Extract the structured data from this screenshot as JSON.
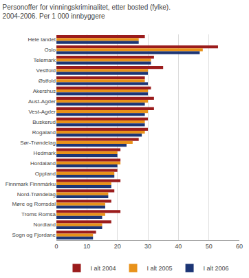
{
  "chart_data": {
    "type": "bar",
    "orientation": "horizontal",
    "title": "Personoffer for vinningskriminalitet, etter bosted (fylke).\n2004-2006. Per 1 000 innbyggere",
    "categories": [
      "Hele landet",
      "Oslo",
      "Telemark",
      "Vestfold",
      "Østfold",
      "Akershus",
      "Aust-Agder",
      "Vest-Agder",
      "Buskerud",
      "Rogaland",
      "Sør-Trøndelag",
      "Hedmark",
      "Hordaland",
      "Oppland",
      "Finnmark Finnmárku",
      "Nord-Trøndelag",
      "Møre og Romsdal",
      "Troms Romsa",
      "Nordland",
      "Sogn og Fjordane"
    ],
    "series": [
      {
        "name": "I alt 2004",
        "color": "#9B1C1C",
        "values": [
          29,
          53,
          32,
          35,
          29,
          31,
          32,
          32,
          30,
          30,
          27,
          21,
          21,
          20,
          21,
          19,
          18,
          21,
          18,
          13
        ]
      },
      {
        "name": "I alt 2005",
        "color": "#E8921A",
        "values": [
          27,
          48,
          31,
          30,
          29,
          30,
          30,
          30,
          29,
          29,
          25,
          20,
          21,
          19,
          18,
          17,
          16,
          16,
          15,
          12
        ]
      },
      {
        "name": "I alt 2006",
        "color": "#1C3575",
        "values": [
          27,
          47,
          31,
          30,
          30,
          30,
          29,
          29,
          29,
          28,
          23,
          20,
          20,
          19,
          18,
          17,
          16,
          15,
          15,
          12
        ]
      }
    ],
    "xlim": [
      0,
      60
    ],
    "xticks": [
      0,
      10,
      20,
      30,
      40,
      50,
      60
    ],
    "grid": true,
    "legend": "bottom"
  }
}
